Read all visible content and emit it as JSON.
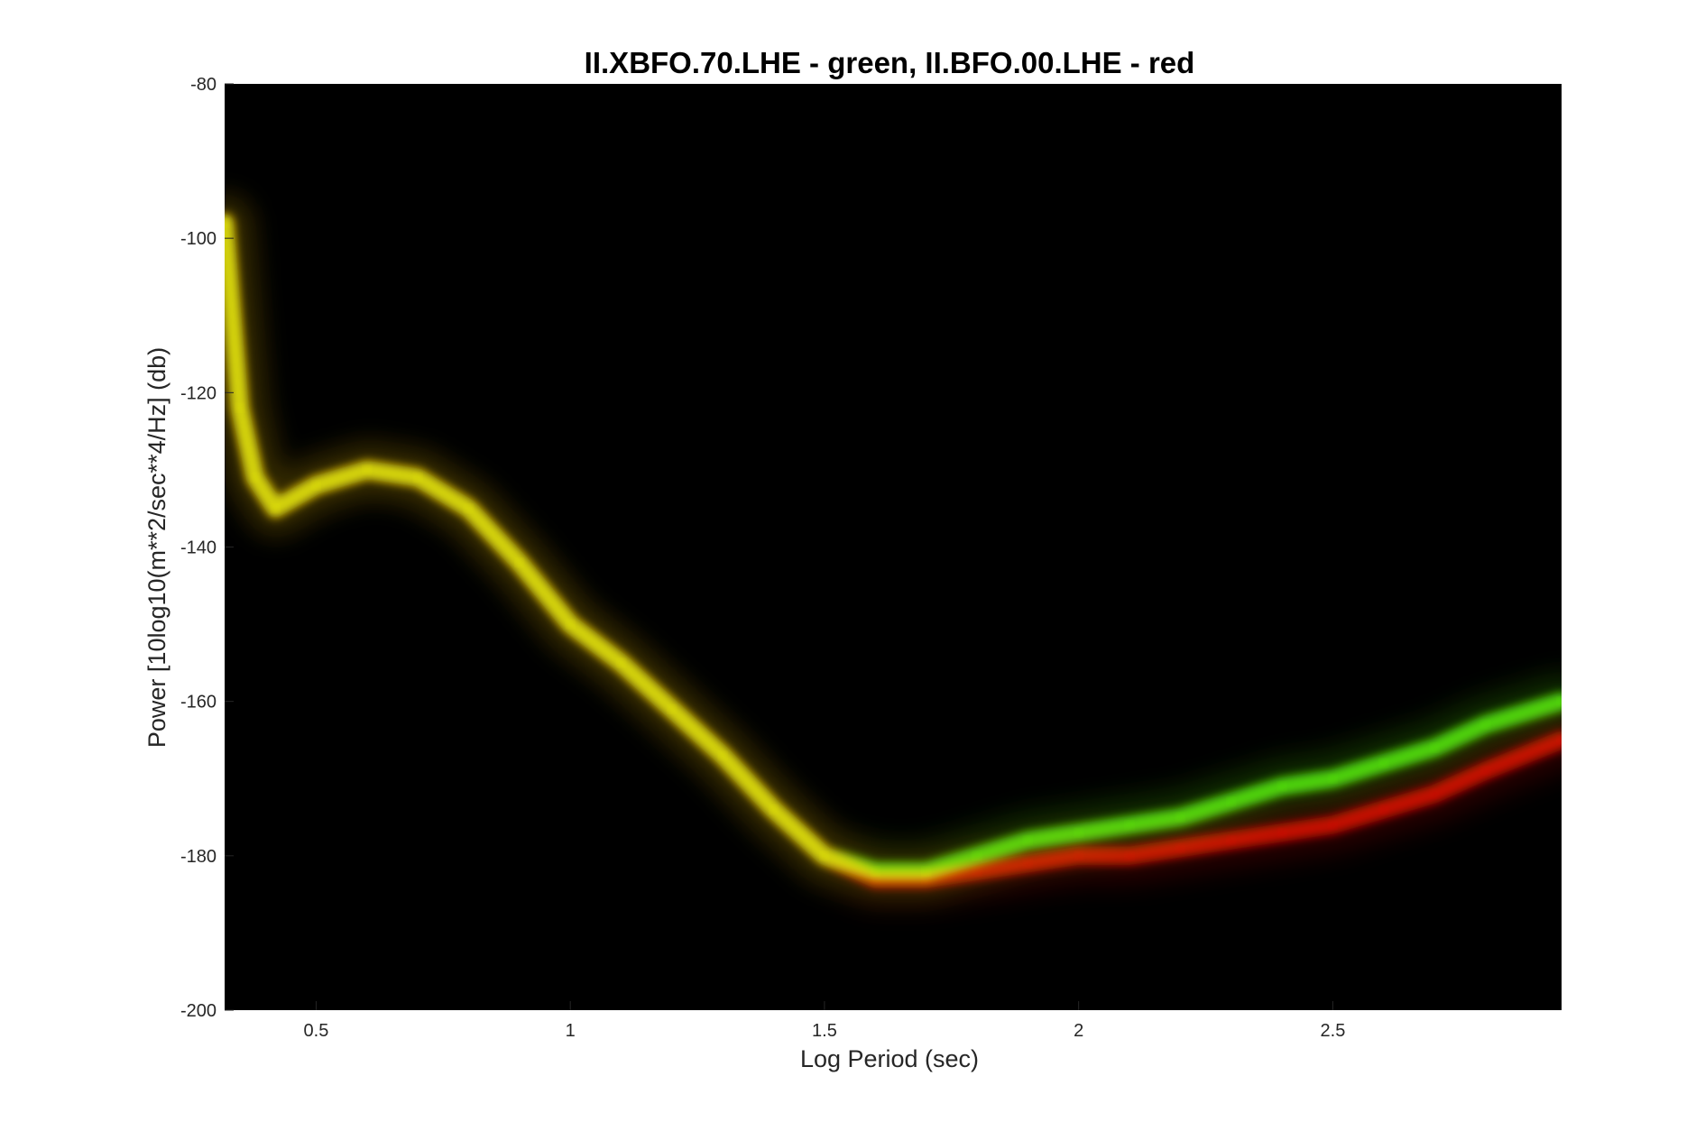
{
  "chart_data": {
    "type": "heatmap",
    "title": "II.XBFO.70.LHE - green,  II.BFO.00.LHE - red",
    "xlabel": "Log Period (sec)",
    "ylabel": "Power [10log10(m**2/sec**4/Hz] (db)",
    "xlim": [
      0.32,
      2.95
    ],
    "ylim": [
      -200,
      -80
    ],
    "xticks": [
      0.5,
      1,
      1.5,
      2,
      2.5
    ],
    "xtick_labels": [
      "0.5",
      "1",
      "1.5",
      "2",
      "2.5"
    ],
    "yticks": [
      -80,
      -100,
      -120,
      -140,
      -160,
      -180,
      -200
    ],
    "ytick_labels": [
      "-80",
      "-100",
      "-120",
      "-140",
      "-160",
      "-180",
      "-200"
    ],
    "grid": false,
    "legend": "none",
    "background_color": "#000000",
    "series": [
      {
        "name": "II.XBFO.70.LHE",
        "color": "#55ee11",
        "x": [
          0.32,
          0.35,
          0.38,
          0.42,
          0.5,
          0.6,
          0.7,
          0.8,
          0.9,
          1.0,
          1.1,
          1.2,
          1.3,
          1.4,
          1.5,
          1.6,
          1.7,
          1.8,
          1.9,
          2.0,
          2.1,
          2.2,
          2.3,
          2.4,
          2.5,
          2.6,
          2.7,
          2.8,
          2.95
        ],
        "y": [
          -98,
          -122,
          -131,
          -135,
          -132,
          -130,
          -131,
          -135,
          -142,
          -150,
          -155,
          -161,
          -167,
          -174,
          -180,
          -182,
          -182,
          -180,
          -178,
          -177,
          -176,
          -175,
          -173,
          -171,
          -170,
          -168,
          -166,
          -163,
          -160
        ]
      },
      {
        "name": "II.BFO.00.LHE",
        "color": "#dd1100",
        "x": [
          0.32,
          0.35,
          0.38,
          0.42,
          0.5,
          0.6,
          0.7,
          0.8,
          0.9,
          1.0,
          1.1,
          1.2,
          1.3,
          1.4,
          1.5,
          1.6,
          1.7,
          1.8,
          1.9,
          2.0,
          2.1,
          2.2,
          2.3,
          2.4,
          2.5,
          2.6,
          2.7,
          2.8,
          2.95
        ],
        "y": [
          -98,
          -122,
          -131,
          -135,
          -132,
          -130,
          -131,
          -135,
          -142,
          -150,
          -155,
          -161,
          -167,
          -174,
          -180,
          -183,
          -183,
          -182,
          -181,
          -180,
          -180,
          -179,
          -178,
          -177,
          -176,
          -174,
          -172,
          -169,
          -165
        ]
      }
    ]
  }
}
